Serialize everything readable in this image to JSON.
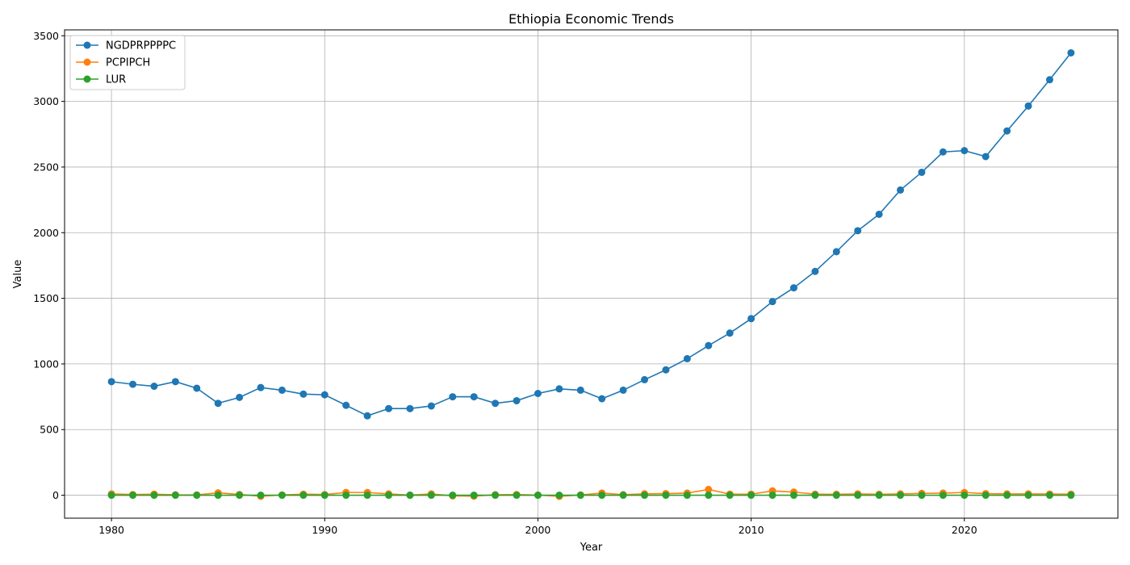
{
  "chart_data": {
    "type": "line",
    "title": "Ethiopia Economic Trends",
    "xlabel": "Year",
    "ylabel": "Value",
    "xlim": [
      1977.8,
      2027.2
    ],
    "ylim": [
      -175,
      3545
    ],
    "xticks": [
      1980,
      1990,
      2000,
      2010,
      2020
    ],
    "yticks": [
      0,
      500,
      1000,
      1500,
      2000,
      2500,
      3000,
      3500
    ],
    "grid": true,
    "legend_position": "top-left",
    "x": [
      1980,
      1981,
      1982,
      1983,
      1984,
      1985,
      1986,
      1987,
      1988,
      1989,
      1990,
      1991,
      1992,
      1993,
      1994,
      1995,
      1996,
      1997,
      1998,
      1999,
      2000,
      2001,
      2002,
      2003,
      2004,
      2005,
      2006,
      2007,
      2008,
      2009,
      2010,
      2011,
      2012,
      2013,
      2014,
      2015,
      2016,
      2017,
      2018,
      2019,
      2020,
      2021,
      2022,
      2023,
      2024,
      2025
    ],
    "series": [
      {
        "name": "NGDPRPPPPC",
        "color": "#1f77b4",
        "values": [
          865,
          845,
          830,
          865,
          815,
          700,
          745,
          820,
          800,
          770,
          765,
          685,
          605,
          660,
          660,
          680,
          750,
          750,
          700,
          720,
          775,
          810,
          800,
          735,
          800,
          880,
          955,
          1040,
          1140,
          1235,
          1345,
          1475,
          1580,
          1705,
          1855,
          2015,
          2140,
          2325,
          2460,
          2615,
          2625,
          2580,
          2775,
          2965,
          3165,
          3370
        ]
      },
      {
        "name": "PCPIPCH",
        "color": "#ff7f0e",
        "values": [
          10,
          5,
          8,
          3,
          2,
          18,
          6,
          -8,
          2,
          8,
          5,
          21,
          21,
          10,
          1,
          10,
          -5,
          -7,
          4,
          5,
          1,
          -9,
          2,
          16,
          4,
          11,
          12,
          16,
          44,
          8,
          8,
          33,
          24,
          8,
          7,
          10,
          7,
          10,
          14,
          16,
          21,
          12,
          10,
          10,
          9,
          8
        ]
      },
      {
        "name": "LUR",
        "color": "#2ca02c",
        "values": [
          0,
          0,
          0,
          0,
          0,
          0,
          0,
          0,
          0,
          0,
          0,
          0,
          0,
          0,
          0,
          0,
          0,
          0,
          0,
          0,
          0,
          0,
          0,
          0,
          0,
          0,
          0,
          0,
          0,
          0,
          0,
          0,
          0,
          0,
          0,
          0,
          0,
          0,
          0,
          0,
          0,
          0,
          0,
          0,
          0,
          0
        ]
      }
    ]
  }
}
